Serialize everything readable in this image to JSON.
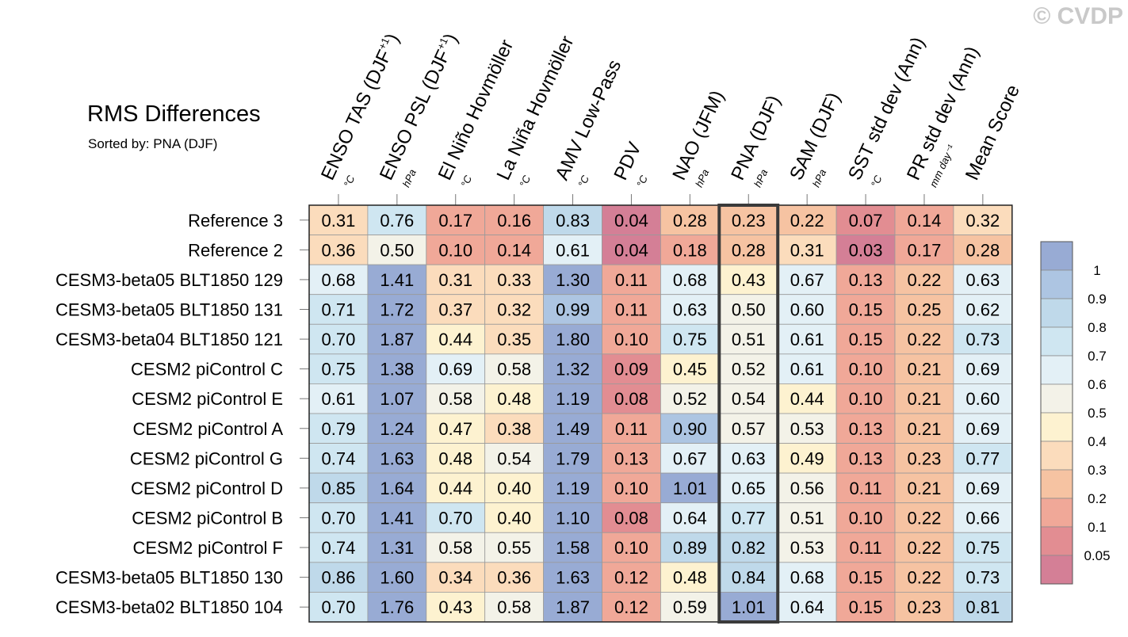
{
  "watermark": "© CVDP",
  "chart_data": {
    "type": "heatmap",
    "title": "RMS Differences",
    "subtitle": "Sorted by: PNA (DJF)",
    "columns": [
      {
        "label": "ENSO TAS (DJF",
        "sup": "+1",
        "close": ")",
        "unit": "°C"
      },
      {
        "label": "ENSO PSL (DJF",
        "sup": "+1",
        "close": ")",
        "unit": "hPa"
      },
      {
        "label": "El Niño Hovmöller",
        "sup": "",
        "close": "",
        "unit": "°C"
      },
      {
        "label": "La Niña Hovmöller",
        "sup": "",
        "close": "",
        "unit": "°C"
      },
      {
        "label": "AMV Low-Pass",
        "sup": "",
        "close": "",
        "unit": "°C"
      },
      {
        "label": "PDV",
        "sup": "",
        "close": "",
        "unit": "°C"
      },
      {
        "label": "NAO (JFM)",
        "sup": "",
        "close": "",
        "unit": "hPa"
      },
      {
        "label": "PNA (DJF)",
        "sup": "",
        "close": "",
        "unit": "hPa"
      },
      {
        "label": "SAM (DJF)",
        "sup": "",
        "close": "",
        "unit": "hPa"
      },
      {
        "label": "SST std dev (Ann)",
        "sup": "",
        "close": "",
        "unit": "°C"
      },
      {
        "label": "PR std dev (Ann)",
        "sup": "",
        "close": "",
        "unit": "mm day⁻¹"
      },
      {
        "label": "Mean Score",
        "sup": "",
        "close": "",
        "unit": ""
      }
    ],
    "rows": [
      {
        "name": "Reference 3",
        "values": [
          0.31,
          0.76,
          0.17,
          0.16,
          0.83,
          0.04,
          0.28,
          0.23,
          0.22,
          0.07,
          0.14,
          0.32
        ]
      },
      {
        "name": "Reference 2",
        "values": [
          0.36,
          0.5,
          0.1,
          0.14,
          0.61,
          0.04,
          0.18,
          0.28,
          0.31,
          0.03,
          0.17,
          0.28
        ]
      },
      {
        "name": "CESM3-beta05 BLT1850 129",
        "values": [
          0.68,
          1.41,
          0.31,
          0.33,
          1.3,
          0.11,
          0.68,
          0.43,
          0.67,
          0.13,
          0.22,
          0.63
        ]
      },
      {
        "name": "CESM3-beta05 BLT1850 131",
        "values": [
          0.71,
          1.72,
          0.37,
          0.32,
          0.99,
          0.11,
          0.63,
          0.5,
          0.6,
          0.15,
          0.25,
          0.62
        ]
      },
      {
        "name": "CESM3-beta04 BLT1850 121",
        "values": [
          0.7,
          1.87,
          0.44,
          0.35,
          1.8,
          0.1,
          0.75,
          0.51,
          0.61,
          0.15,
          0.22,
          0.73
        ]
      },
      {
        "name": "CESM2 piControl C",
        "values": [
          0.75,
          1.38,
          0.69,
          0.58,
          1.32,
          0.09,
          0.45,
          0.52,
          0.61,
          0.1,
          0.21,
          0.69
        ]
      },
      {
        "name": "CESM2 piControl E",
        "values": [
          0.61,
          1.07,
          0.58,
          0.48,
          1.19,
          0.08,
          0.52,
          0.54,
          0.44,
          0.1,
          0.21,
          0.6
        ]
      },
      {
        "name": "CESM2 piControl A",
        "values": [
          0.79,
          1.24,
          0.47,
          0.38,
          1.49,
          0.11,
          0.9,
          0.57,
          0.53,
          0.13,
          0.21,
          0.69
        ]
      },
      {
        "name": "CESM2 piControl G",
        "values": [
          0.74,
          1.63,
          0.48,
          0.54,
          1.79,
          0.13,
          0.67,
          0.63,
          0.49,
          0.13,
          0.23,
          0.77
        ]
      },
      {
        "name": "CESM2 piControl D",
        "values": [
          0.85,
          1.64,
          0.44,
          0.4,
          1.19,
          0.1,
          1.01,
          0.65,
          0.56,
          0.11,
          0.21,
          0.69
        ]
      },
      {
        "name": "CESM2 piControl B",
        "values": [
          0.7,
          1.41,
          0.7,
          0.4,
          1.1,
          0.08,
          0.64,
          0.77,
          0.51,
          0.1,
          0.22,
          0.66
        ]
      },
      {
        "name": "CESM2 piControl F",
        "values": [
          0.74,
          1.31,
          0.58,
          0.55,
          1.58,
          0.1,
          0.89,
          0.82,
          0.53,
          0.11,
          0.22,
          0.75
        ]
      },
      {
        "name": "CESM3-beta05 BLT1850 130",
        "values": [
          0.86,
          1.6,
          0.34,
          0.36,
          1.63,
          0.12,
          0.48,
          0.84,
          0.68,
          0.15,
          0.22,
          0.73
        ]
      },
      {
        "name": "CESM3-beta02 BLT1850 104",
        "values": [
          0.7,
          1.76,
          0.43,
          0.58,
          1.87,
          0.12,
          0.59,
          1.01,
          0.64,
          0.15,
          0.23,
          0.81
        ]
      }
    ],
    "highlight_column": "PNA (DJF)",
    "colorbar": {
      "levels": [
        0.05,
        0.1,
        0.2,
        0.3,
        0.4,
        0.5,
        0.6,
        0.7,
        0.8,
        0.9,
        1
      ],
      "level_labels": [
        "0.05",
        "0.1",
        "0.2",
        "0.3",
        "0.4",
        "0.5",
        "0.6",
        "0.7",
        "0.8",
        "0.9",
        "1"
      ],
      "colors": [
        "#d47f96",
        "#e28d92",
        "#f0a898",
        "#f6c3a2",
        "#fbdcbc",
        "#fdf2d0",
        "#f3f2e8",
        "#e3f0f6",
        "#cfe6f1",
        "#bfd9ea",
        "#adc5e2",
        "#98abd4"
      ]
    }
  }
}
